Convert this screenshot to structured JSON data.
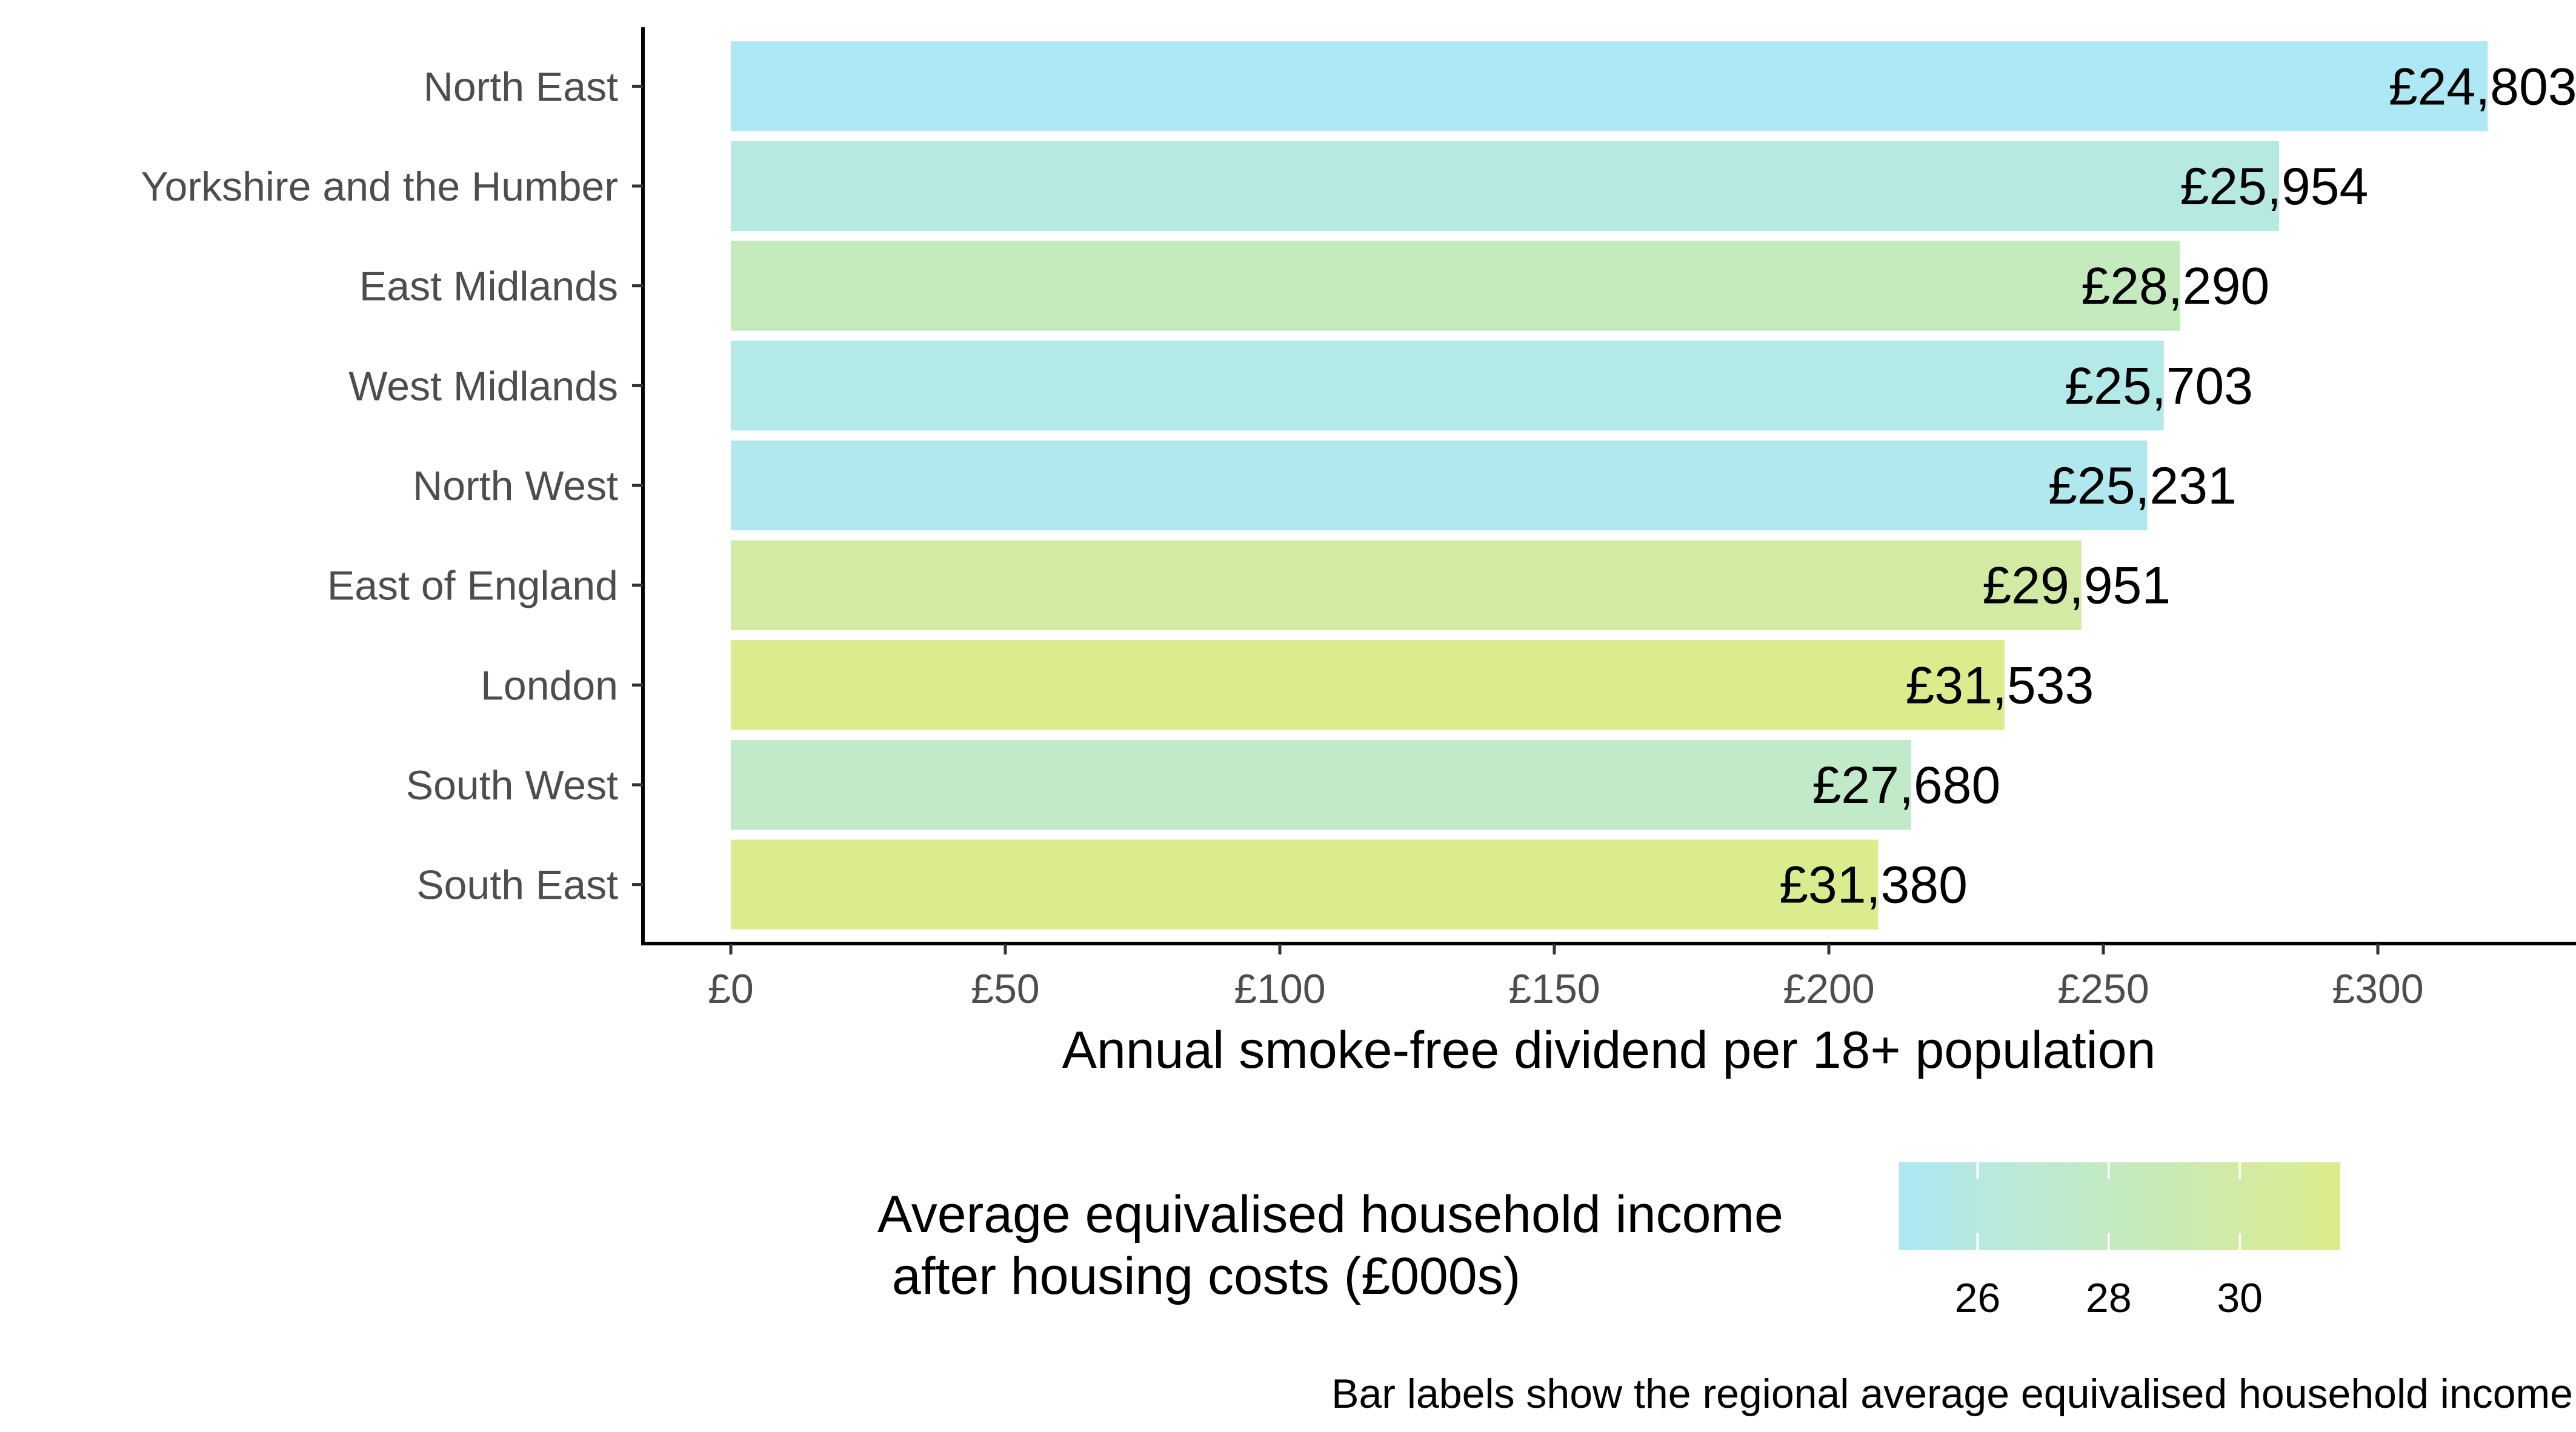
{
  "chart_data": {
    "type": "bar",
    "orientation": "horizontal",
    "categories": [
      "North East",
      "Yorkshire and the Humber",
      "East Midlands",
      "West Midlands",
      "North West",
      "East of England",
      "London",
      "South West",
      "South East"
    ],
    "values": [
      320,
      282,
      264,
      261,
      258,
      246,
      232,
      215,
      209
    ],
    "bar_labels": [
      "£24,803",
      "£25,954",
      "£28,290",
      "£25,703",
      "£25,231",
      "£29,951",
      "£31,533",
      "£27,680",
      "£31,380"
    ],
    "color_values": [
      24.803,
      25.954,
      28.29,
      25.703,
      25.231,
      29.951,
      31.533,
      27.68,
      31.38
    ],
    "xlim": [
      -16,
      340
    ],
    "xticks": [
      0,
      50,
      100,
      150,
      200,
      250,
      300
    ],
    "xtick_labels": [
      "£0",
      "£50",
      "£100",
      "£150",
      "£200",
      "£250",
      "£300"
    ],
    "xlabel": "Annual smoke-free dividend per 18+ population",
    "ylabel": "",
    "grid": false,
    "legend": {
      "title_lines": [
        "Average equivalised household income",
        " after housing costs (£000s)"
      ],
      "type": "colorbar",
      "range": [
        24.803,
        31.533
      ],
      "ticks": [
        26,
        28,
        30
      ],
      "tick_labels": [
        "26",
        "28",
        "30"
      ],
      "low_color": "#ADE8F4",
      "high_color": "#DCEC8C",
      "placement": "bottom"
    },
    "caption": "Bar labels show the regional average equivalised household income"
  }
}
